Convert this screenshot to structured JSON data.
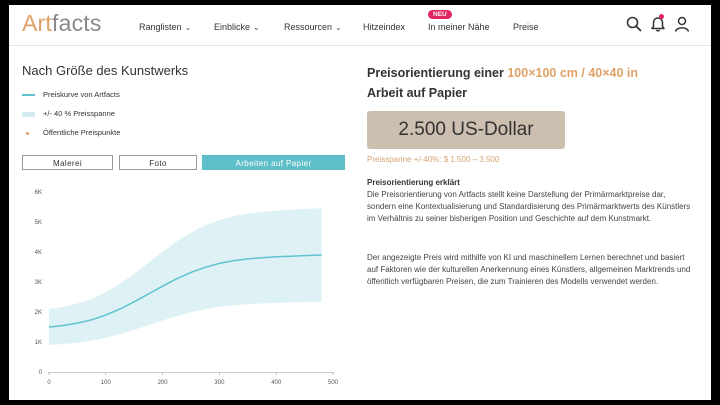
{
  "header": {
    "logo_part1": "Art",
    "logo_part2": "facts",
    "nav": [
      {
        "label": "Ranglisten"
      },
      {
        "label": "Einblicke"
      },
      {
        "label": "Ressourcen"
      },
      {
        "label": "Hitzeindex"
      },
      {
        "label": "In meiner Nähe",
        "badge": "NEU"
      },
      {
        "label": "Preise"
      }
    ],
    "icons": [
      "search-icon",
      "notification-bell-icon",
      "user-icon"
    ],
    "accent_color": "#e0a167",
    "badge_color": "#e0245e"
  },
  "left": {
    "title": "Nach Größe des Kunstwerks",
    "legend": [
      {
        "label": "Preiskurve von Artfacts"
      },
      {
        "label": "+/- 40 % Preisspanne"
      },
      {
        "label": "Öffentliche Preispunkte"
      }
    ],
    "tabs": [
      {
        "label": "Malerei",
        "active": false
      },
      {
        "label": "Foto",
        "active": false
      },
      {
        "label": "Arbeiten auf Papier",
        "active": true
      }
    ]
  },
  "chart_data": {
    "type": "line",
    "y_ticks": [
      "6K",
      "5K",
      "4K",
      "3K",
      "2K",
      "1K",
      "0"
    ],
    "x_ticks": [
      "0",
      "100",
      "200",
      "300",
      "400",
      "500"
    ],
    "xlim": [
      0,
      500
    ],
    "ylim": [
      0,
      6000
    ],
    "series": [
      {
        "name": "Preiskurve von Artfacts",
        "x": [
          0,
          25,
          50,
          75,
          100,
          125,
          150,
          175,
          200,
          225,
          250,
          275,
          300,
          325,
          350,
          375,
          400,
          425,
          450,
          480
        ],
        "values": [
          1500,
          1550,
          1630,
          1740,
          1900,
          2100,
          2340,
          2600,
          2860,
          3110,
          3320,
          3490,
          3620,
          3710,
          3770,
          3810,
          3840,
          3860,
          3880,
          3900
        ],
        "band_pct": 40,
        "color": "#5fc3cf"
      }
    ],
    "grid": false
  },
  "right": {
    "title_prefix": "Preisorientierung einer",
    "title_size": "100×100 cm / 40×40 in",
    "title_suffix": "Arbeit auf Papier",
    "price": "2.500 US-Dollar",
    "range": "Preisspanne +/-40%: $ 1.500 – 3.500",
    "explanation_heading": "Preisorientierung erklärt",
    "paragraph1": "Die Preisorientierung von Artfacts stellt keine Darstellung der Primärmarktpreise dar, sondern eine Kontextualisierung und Standardisierung des Primärmarktwerts des Künstlers im Verhältnis zu seiner bisherigen Position und Geschichte auf dem Kunstmarkt.",
    "paragraph2": "Der angezeigte Preis wird mithilfe von KI und maschinellem Lernen berechnet und basiert auf Faktoren wie der kulturellen Anerkennung eines Künstlers, allgemeinen Marktrends und öffentlich verfügbaren Preisen, die zum Trainieren des Modells verwendet werden."
  }
}
